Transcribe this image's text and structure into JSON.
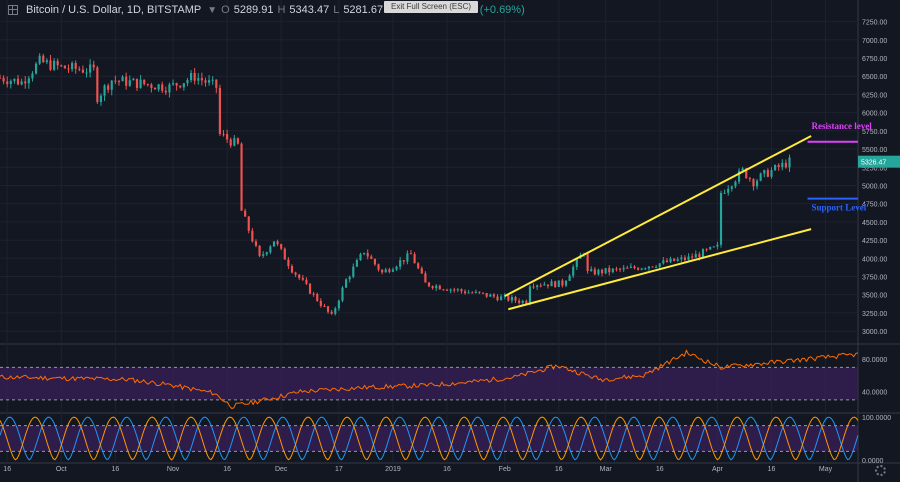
{
  "header": {
    "symbol": "Bitcoin / U.S. Dollar, 1D, BITSTAMP",
    "open_label": "O",
    "open": "5289.91",
    "high_label": "H",
    "high": "5343.47",
    "low_label": "L",
    "low": "5281.67",
    "close_label": "C",
    "close": "5326.47",
    "change": "+36.56 (+0.69%)"
  },
  "exit_fullscreen": "Exit Full Screen (ESC)",
  "icons": {
    "layout": "grid-icon",
    "dropdown": "chevron-down-icon",
    "settings": "gear-icon"
  },
  "colors": {
    "background": "#131722",
    "up": "#26a69a",
    "down": "#ef5350",
    "trendline": "#ffeb3b",
    "resistance": "#e040fb",
    "support": "#2962ff",
    "rsi_line": "#ff6d00",
    "k_line": "#2196f3",
    "d_line": "#ff9800",
    "indicator_fill": "#3b1f5c"
  },
  "chart_data": [
    {
      "type": "candlestick",
      "y_ticks": [
        3000,
        3250,
        3500,
        3750,
        4000,
        4250,
        4500,
        4750,
        5000,
        5250,
        5500,
        5750,
        6000,
        6250,
        6500,
        6750,
        7000,
        7250
      ],
      "y_tick_labels": [
        "3000.00",
        "3250.00",
        "3500.00",
        "3750.00",
        "4000.00",
        "4250.00",
        "4500.00",
        "4750.00",
        "5000.00",
        "5250.00",
        "5500.00",
        "5750.00",
        "6000.00",
        "6250.00",
        "6500.00",
        "6750.00",
        "7000.00",
        "7250.00"
      ],
      "ylim": [
        2850,
        7300
      ],
      "x_range": [
        "2018-09-14",
        "2019-05-10"
      ],
      "x_ticks": [
        "2018-09-16",
        "2018-10-01",
        "2018-10-16",
        "2018-11-01",
        "2018-11-16",
        "2018-12-01",
        "2018-12-17",
        "2019-01-01",
        "2019-01-16",
        "2019-02-01",
        "2019-02-16",
        "2019-03-01",
        "2019-03-16",
        "2019-04-01",
        "2019-04-16",
        "2019-05-01"
      ],
      "x_tick_labels": [
        "16",
        "Oct",
        "16",
        "Nov",
        "16",
        "Dec",
        "17",
        "2019",
        "16",
        "Feb",
        "16",
        "Mar",
        "16",
        "Apr",
        "16",
        "May"
      ],
      "last_price": 5326.47,
      "last_price_label": "5326.47",
      "anchors": [
        [
          "2018-09-14",
          6480
        ],
        [
          "2018-09-20",
          6420
        ],
        [
          "2018-09-25",
          6700
        ],
        [
          "2018-10-01",
          6620
        ],
        [
          "2018-10-10",
          6580
        ],
        [
          "2018-10-11",
          6220
        ],
        [
          "2018-10-15",
          6450
        ],
        [
          "2018-10-31",
          6350
        ],
        [
          "2018-11-07",
          6500
        ],
        [
          "2018-11-13",
          6350
        ],
        [
          "2018-11-14",
          5700
        ],
        [
          "2018-11-19",
          5550
        ],
        [
          "2018-11-20",
          4650
        ],
        [
          "2018-11-25",
          4000
        ],
        [
          "2018-11-29",
          4250
        ],
        [
          "2018-12-04",
          3850
        ],
        [
          "2018-12-09",
          3550
        ],
        [
          "2018-12-15",
          3200
        ],
        [
          "2018-12-19",
          3700
        ],
        [
          "2018-12-24",
          4100
        ],
        [
          "2018-12-29",
          3800
        ],
        [
          "2019-01-06",
          4050
        ],
        [
          "2019-01-10",
          3650
        ],
        [
          "2019-01-20",
          3550
        ],
        [
          "2019-02-01",
          3450
        ],
        [
          "2019-02-07",
          3400
        ],
        [
          "2019-02-08",
          3650
        ],
        [
          "2019-02-17",
          3650
        ],
        [
          "2019-02-23",
          4100
        ],
        [
          "2019-02-24",
          3800
        ],
        [
          "2019-03-07",
          3850
        ],
        [
          "2019-03-24",
          4000
        ],
        [
          "2019-04-01",
          4150
        ],
        [
          "2019-04-02",
          4900
        ],
        [
          "2019-04-08",
          5200
        ],
        [
          "2019-04-11",
          5050
        ],
        [
          "2019-04-14",
          5150
        ],
        [
          "2019-04-21",
          5326
        ]
      ],
      "annotations": [
        {
          "kind": "trendline",
          "from": [
            "2019-02-01",
            3480
          ],
          "to": [
            "2019-04-27",
            5680
          ]
        },
        {
          "kind": "trendline",
          "from": [
            "2019-02-02",
            3300
          ],
          "to": [
            "2019-04-27",
            4400
          ]
        },
        {
          "kind": "hline",
          "label": "Resistance level",
          "from": "2019-04-26",
          "to": "2019-05-10",
          "y": 5600
        },
        {
          "kind": "hline",
          "label": "Support Level",
          "from": "2019-04-26",
          "to": "2019-05-10",
          "y": 4820
        }
      ]
    },
    {
      "type": "line",
      "name": "RSI",
      "y_ticks": [
        40,
        80
      ],
      "y_tick_labels": [
        "40.0000",
        "80.0000"
      ],
      "bands": [
        30,
        70
      ],
      "ylim": [
        15,
        95
      ],
      "series": [
        {
          "values": [
            [
              0,
              58
            ],
            [
              0.15,
              55
            ],
            [
              0.2,
              48
            ],
            [
              0.25,
              38
            ],
            [
              0.27,
              22
            ],
            [
              0.3,
              28
            ],
            [
              0.35,
              40
            ],
            [
              0.42,
              45
            ],
            [
              0.5,
              48
            ],
            [
              0.55,
              52
            ],
            [
              0.6,
              58
            ],
            [
              0.65,
              72
            ],
            [
              0.7,
              55
            ],
            [
              0.75,
              60
            ],
            [
              0.8,
              88
            ],
            [
              0.84,
              70
            ],
            [
              0.86,
              72
            ]
          ]
        }
      ]
    },
    {
      "type": "line",
      "name": "Stochastic RSI",
      "y_ticks": [
        0,
        100
      ],
      "y_tick_labels": [
        "0.0000",
        "100.0000"
      ],
      "bands": [
        20,
        80
      ],
      "ylim": [
        -5,
        105
      ],
      "series": [
        {
          "name": "K",
          "cycles": 22,
          "phase": 0.0
        },
        {
          "name": "D",
          "cycles": 22,
          "phase": 0.35
        }
      ]
    }
  ]
}
